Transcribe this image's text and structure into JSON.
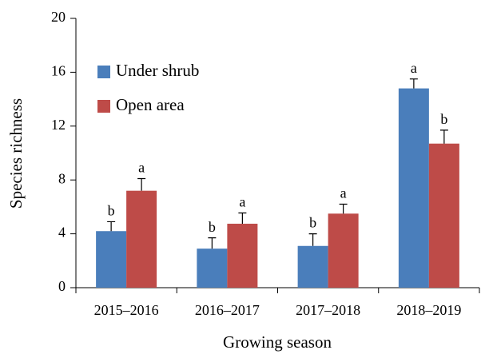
{
  "chart_data": {
    "type": "bar",
    "x_label": "Growing season",
    "y_label": "Species richness",
    "categories": [
      "2015–2016",
      "2016–2017",
      "2017–2018",
      "2018–2019"
    ],
    "series": [
      {
        "name": "Under shrub",
        "color": "#4a7ebb",
        "values": [
          4.2,
          2.9,
          3.1,
          14.8
        ],
        "errors": [
          0.7,
          0.8,
          0.9,
          0.7
        ],
        "letters": [
          "b",
          "b",
          "b",
          "a"
        ]
      },
      {
        "name": "Open area",
        "color": "#be4b48",
        "values": [
          7.2,
          4.75,
          5.5,
          10.7
        ],
        "errors": [
          0.9,
          0.8,
          0.7,
          1.0
        ],
        "letters": [
          "a",
          "a",
          "a",
          "b"
        ]
      }
    ],
    "ylim": [
      0,
      20
    ],
    "yticks": [
      0,
      4,
      8,
      12,
      16,
      20
    ],
    "grid": false,
    "legend": "upper left"
  }
}
